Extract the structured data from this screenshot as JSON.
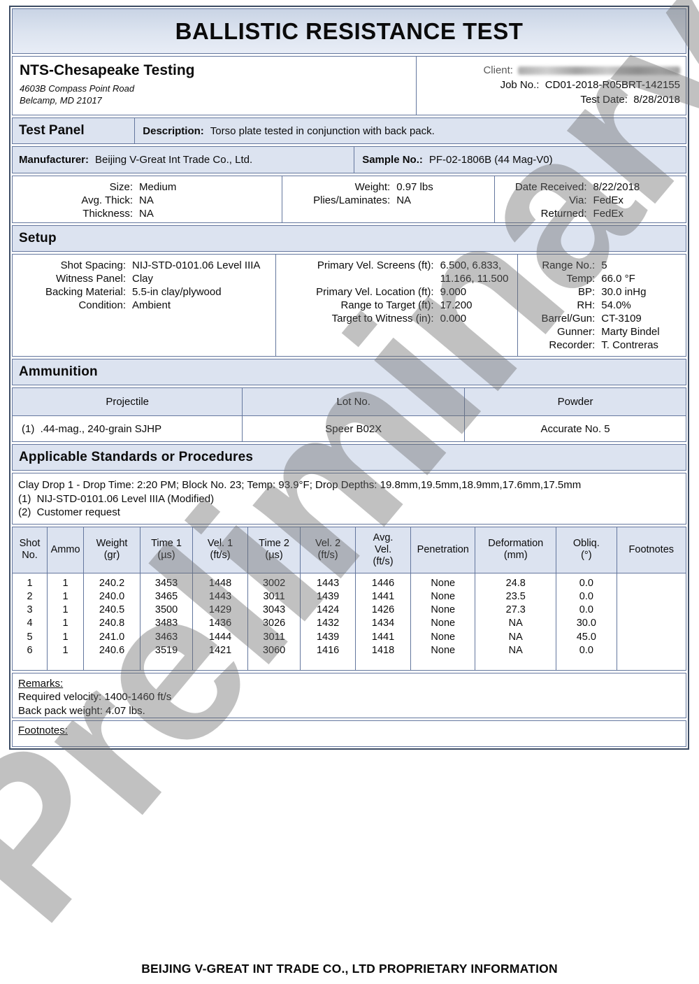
{
  "title": "BALLISTIC RESISTANCE TEST",
  "lab": {
    "name": "NTS-Chesapeake Testing",
    "address_line1": "4603B Compass Point Road",
    "address_line2": "Belcamp, MD 21017"
  },
  "meta": {
    "client_label": "Client:",
    "job_no_label": "Job No.:",
    "job_no": "CD01-2018-R05BRT-142155",
    "test_date_label": "Test Date:",
    "test_date": "8/28/2018"
  },
  "test_panel": {
    "section_title": "Test Panel",
    "description_label": "Description:",
    "description": "Torso plate tested in conjunction with back pack.",
    "manufacturer_label": "Manufacturer:",
    "manufacturer": "Beijing V-Great Int Trade Co., Ltd.",
    "sample_no_label": "Sample No.:",
    "sample_no": "PF-02-1806B (44 Mag-V0)",
    "info_col1": [
      {
        "label": "Size:",
        "value": "Medium"
      },
      {
        "label": "Avg. Thick:",
        "value": "NA"
      },
      {
        "label": "Thickness:",
        "value": "NA"
      }
    ],
    "info_col2": [
      {
        "label": "Weight:",
        "value": "0.97 lbs"
      },
      {
        "label": "Plies/Laminates:",
        "value": "NA"
      }
    ],
    "info_col3": [
      {
        "label": "Date Received:",
        "value": "8/22/2018"
      },
      {
        "label": "Via:",
        "value": "FedEx"
      },
      {
        "label": "Returned:",
        "value": "FedEx"
      }
    ]
  },
  "setup": {
    "section_title": "Setup",
    "col1": [
      {
        "label": "Shot Spacing:",
        "value": "NIJ-STD-0101.06 Level IIIA"
      },
      {
        "label": "Witness Panel:",
        "value": "Clay"
      },
      {
        "label": "Backing Material:",
        "value": "5.5-in clay/plywood"
      },
      {
        "label": "Condition:",
        "value": "Ambient"
      }
    ],
    "col2": [
      {
        "label": "Primary Vel. Screens (ft):",
        "value": "6.500, 6.833,\n11.166, 11.500"
      },
      {
        "label": "Primary Vel. Location (ft):",
        "value": "9.000"
      },
      {
        "label": "Range to Target (ft):",
        "value": "17.200"
      },
      {
        "label": "Target to Witness (in):",
        "value": "0.000"
      }
    ],
    "col3": [
      {
        "label": "Range No.:",
        "value": "5"
      },
      {
        "label": "Temp:",
        "value": "66.0 °F"
      },
      {
        "label": "BP:",
        "value": "30.0 inHg"
      },
      {
        "label": "RH:",
        "value": "54.0%"
      },
      {
        "label": "Barrel/Gun:",
        "value": "CT-3109"
      },
      {
        "label": "Gunner:",
        "value": "Marty Bindel"
      },
      {
        "label": "Recorder:",
        "value": "T. Contreras"
      }
    ]
  },
  "ammunition": {
    "section_title": "Ammunition",
    "headers": [
      "Projectile",
      "Lot No.",
      "Powder"
    ],
    "rows": [
      [
        "(1)  .44-mag., 240-grain SJHP",
        "Speer B02X",
        "Accurate No. 5"
      ]
    ]
  },
  "standards": {
    "section_title": "Applicable Standards or Procedures",
    "lines": [
      "Clay Drop 1 - Drop Time: 2:20 PM; Block No. 23; Temp: 93.9°F; Drop Depths: 19.8mm,19.5mm,18.9mm,17.6mm,17.5mm",
      "(1)  NIJ-STD-0101.06 Level IIIA (Modified)",
      "(2)  Customer request"
    ]
  },
  "shots": {
    "headers": [
      "Shot\nNo.",
      "Ammo",
      "Weight\n(gr)",
      "Time 1\n(µs)",
      "Vel. 1\n(ft/s)",
      "Time 2\n(µs)",
      "Vel. 2\n(ft/s)",
      "Avg.\nVel.\n(ft/s)",
      "Penetration",
      "Deformation\n(mm)",
      "Obliq.\n(°)",
      "Footnotes"
    ],
    "rows": [
      [
        "1",
        "1",
        "240.2",
        "3453",
        "1448",
        "3002",
        "1443",
        "1446",
        "None",
        "24.8",
        "0.0",
        ""
      ],
      [
        "2",
        "1",
        "240.0",
        "3465",
        "1443",
        "3011",
        "1439",
        "1441",
        "None",
        "23.5",
        "0.0",
        ""
      ],
      [
        "3",
        "1",
        "240.5",
        "3500",
        "1429",
        "3043",
        "1424",
        "1426",
        "None",
        "27.3",
        "0.0",
        ""
      ],
      [
        "4",
        "1",
        "240.8",
        "3483",
        "1436",
        "3026",
        "1432",
        "1434",
        "None",
        "NA",
        "30.0",
        ""
      ],
      [
        "5",
        "1",
        "241.0",
        "3463",
        "1444",
        "3011",
        "1439",
        "1441",
        "None",
        "NA",
        "45.0",
        ""
      ],
      [
        "6",
        "1",
        "240.6",
        "3519",
        "1421",
        "3060",
        "1416",
        "1418",
        "None",
        "NA",
        "0.0",
        ""
      ]
    ]
  },
  "remarks": {
    "label": "Remarks:",
    "lines": [
      "Required velocity: 1400-1460 ft/s",
      "Back pack weight: 4.07 lbs."
    ]
  },
  "footnotes_label": "Footnotes:",
  "footer": "BEIJING V-GREAT INT TRADE CO., LTD PROPRIETARY INFORMATION",
  "watermark": "Preliminary",
  "colors": {
    "section_fill": "#dce3f0",
    "inner_border": "#64779e",
    "outer_border": "#3c4c64"
  }
}
